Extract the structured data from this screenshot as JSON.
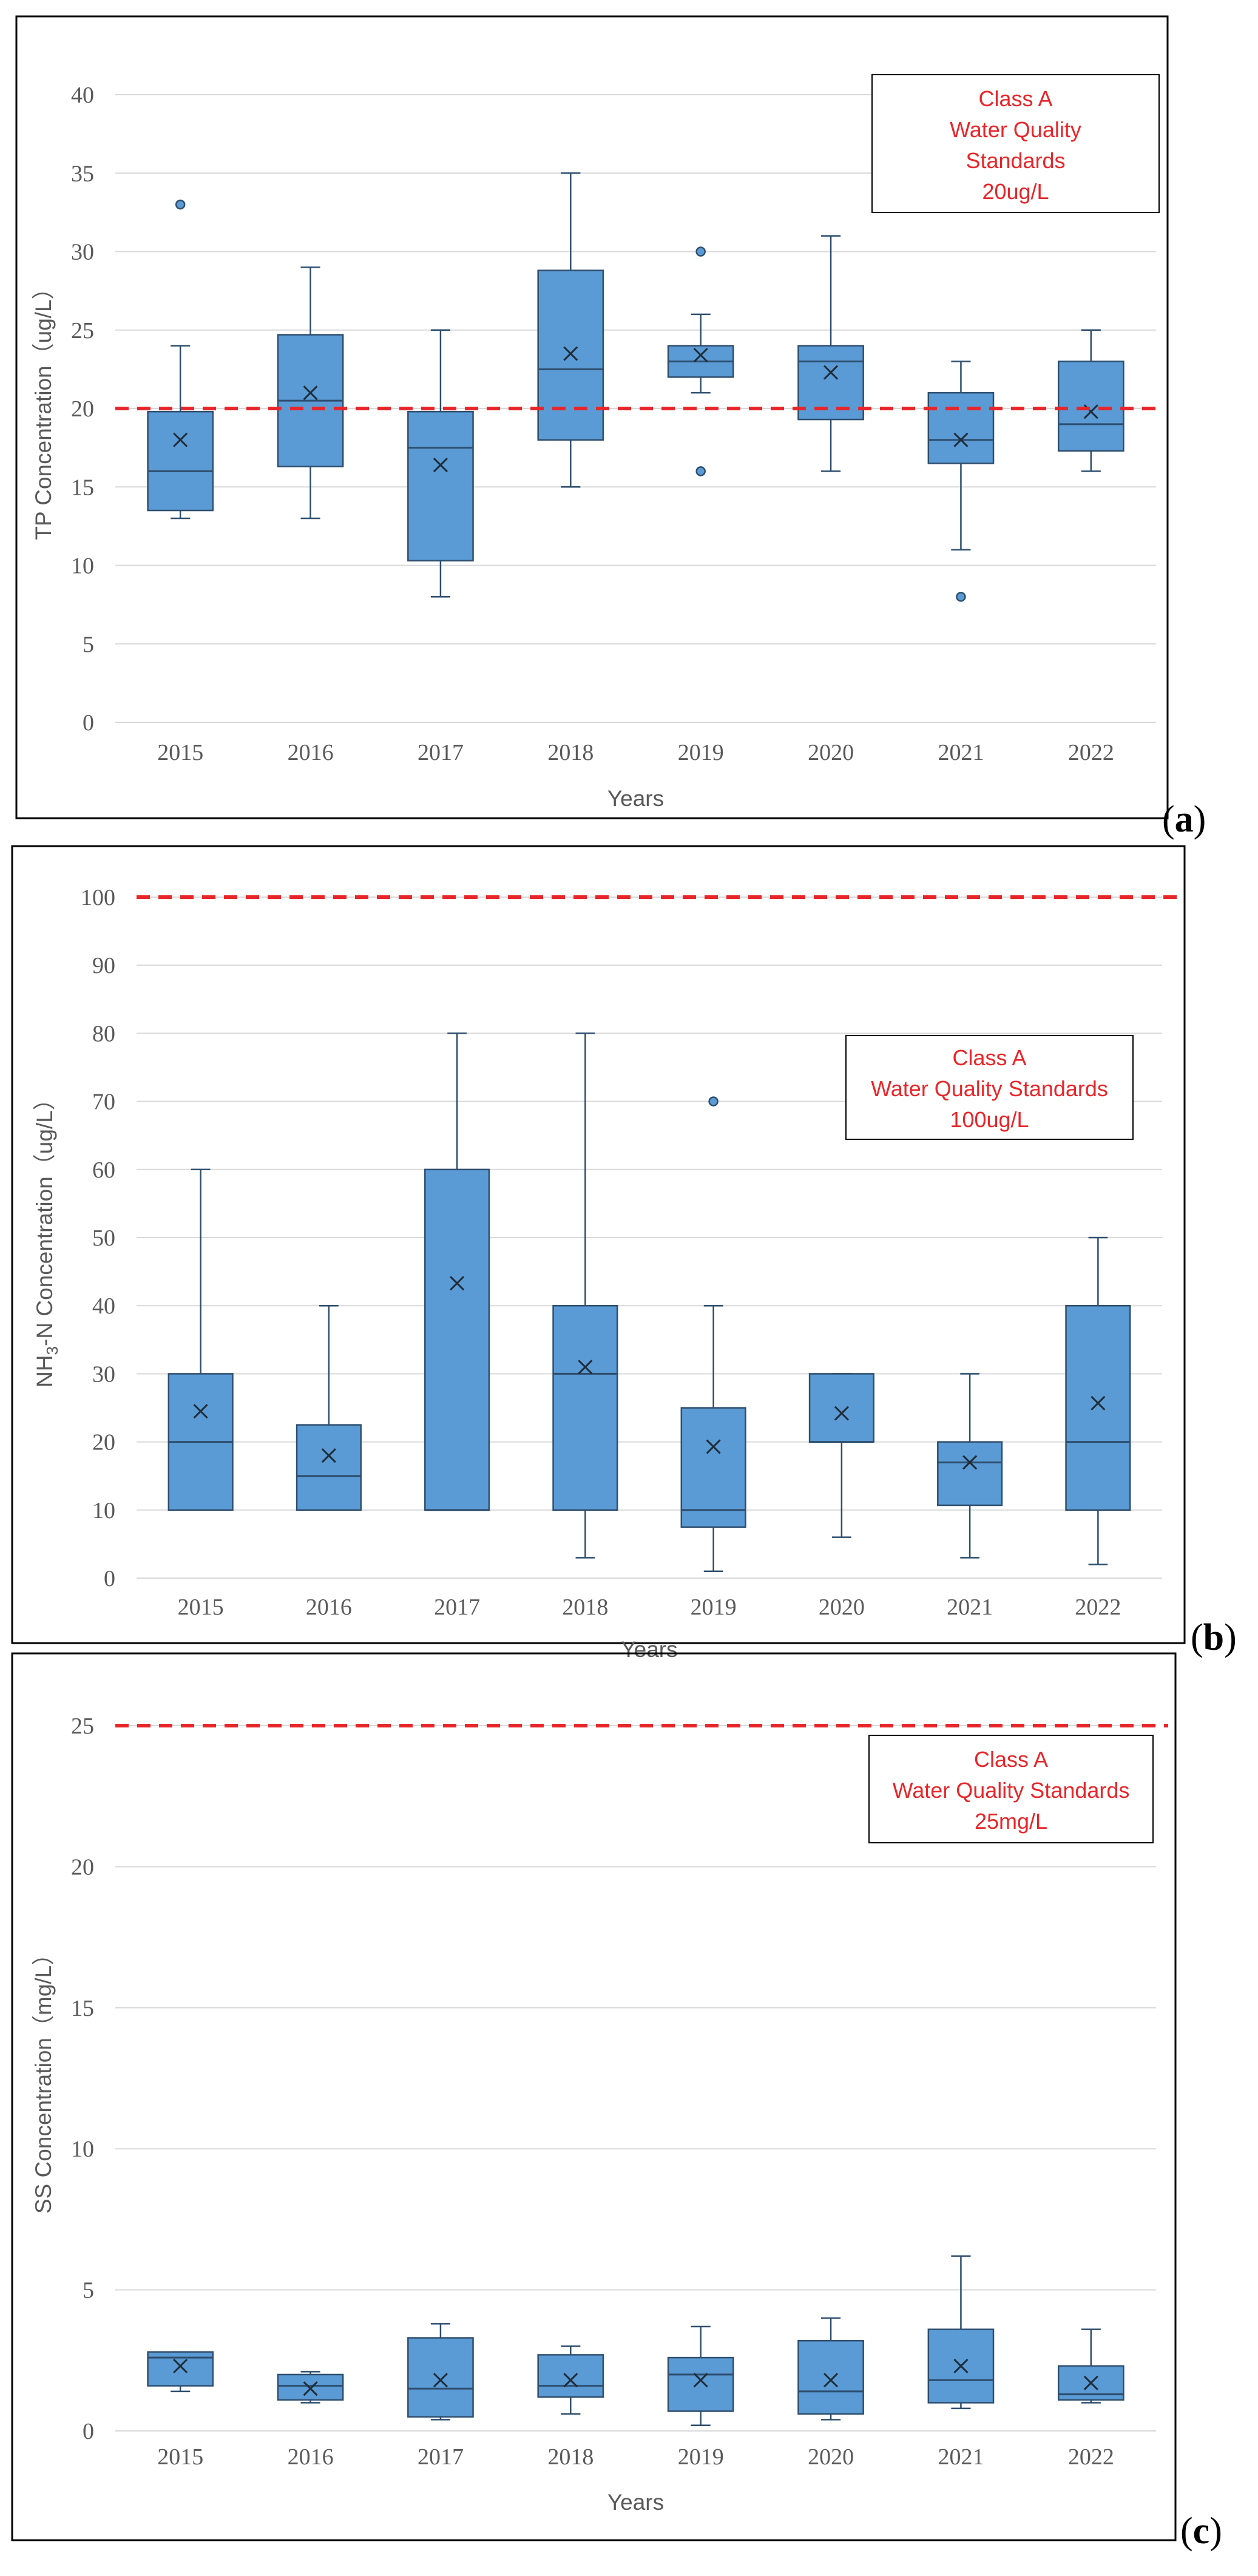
{
  "colors": {
    "box_fill": "#5b9bd5",
    "box_stroke": "#2e4e6e",
    "standard_line": "#e8262a",
    "grid": "#d9d9d9",
    "text": "#595959"
  },
  "chart_data": [
    {
      "type": "box",
      "panel_label": "a",
      "title": "",
      "xlabel": "Years",
      "ylabel": "TP Concentration（ug/L）",
      "ylim": [
        0,
        40
      ],
      "yticks": [
        "0",
        "5",
        "10",
        "15",
        "20",
        "25",
        "30",
        "35",
        "40"
      ],
      "categories": [
        "2015",
        "2016",
        "2017",
        "2018",
        "2019",
        "2020",
        "2021",
        "2022"
      ],
      "boxes": [
        {
          "min": 13,
          "q1": 13.5,
          "median": 16,
          "q3": 19.8,
          "max": 24,
          "mean": 18,
          "outliers": [
            33
          ]
        },
        {
          "min": 13,
          "q1": 16.3,
          "median": 20.5,
          "q3": 24.7,
          "max": 29,
          "mean": 21,
          "outliers": []
        },
        {
          "min": 8,
          "q1": 10.3,
          "median": 17.5,
          "q3": 19.8,
          "max": 25,
          "mean": 16.4,
          "outliers": []
        },
        {
          "min": 15,
          "q1": 18,
          "median": 22.5,
          "q3": 28.8,
          "max": 35,
          "mean": 23.5,
          "outliers": []
        },
        {
          "min": 21,
          "q1": 22,
          "median": 23,
          "q3": 24,
          "max": 26,
          "mean": 23.4,
          "outliers": [
            30,
            16
          ]
        },
        {
          "min": 16,
          "q1": 19.3,
          "median": 23,
          "q3": 24,
          "max": 31,
          "mean": 22.3,
          "outliers": []
        },
        {
          "min": 11,
          "q1": 16.5,
          "median": 18,
          "q3": 21,
          "max": 23,
          "mean": 18,
          "outliers": [
            8
          ]
        },
        {
          "min": 16,
          "q1": 17.3,
          "median": 19,
          "q3": 23,
          "max": 25,
          "mean": 19.8,
          "outliers": []
        }
      ],
      "standard_value": 20,
      "legend": [
        "Class A",
        "Water Quality",
        "Standards",
        "20ug/L"
      ]
    },
    {
      "type": "box",
      "panel_label": "b",
      "title": "",
      "xlabel": "Years",
      "ylabel_parts": [
        "NH",
        "3",
        "-N Concentration（ug/L）"
      ],
      "ylim": [
        0,
        100
      ],
      "yticks": [
        "0",
        "10",
        "20",
        "30",
        "40",
        "50",
        "60",
        "70",
        "80",
        "90",
        "100"
      ],
      "categories": [
        "2015",
        "2016",
        "2017",
        "2018",
        "2019",
        "2020",
        "2021",
        "2022"
      ],
      "boxes": [
        {
          "min": 10,
          "q1": 10,
          "median": 20,
          "q3": 30,
          "max": 60,
          "mean": 24.5,
          "outliers": []
        },
        {
          "min": 10,
          "q1": 10,
          "median": 15,
          "q3": 22.5,
          "max": 40,
          "mean": 18,
          "outliers": []
        },
        {
          "min": 10,
          "q1": 10,
          "median": 10,
          "q3": 60,
          "max": 80,
          "mean": 43.3,
          "outliers": []
        },
        {
          "min": 3,
          "q1": 10,
          "median": 30,
          "q3": 40,
          "max": 80,
          "mean": 31,
          "outliers": []
        },
        {
          "min": 1,
          "q1": 7.5,
          "median": 10,
          "q3": 25,
          "max": 40,
          "mean": 19.3,
          "outliers": [
            70
          ]
        },
        {
          "min": 6,
          "q1": 20,
          "median": 20,
          "q3": 30,
          "max": 30,
          "mean": 24.2,
          "outliers": []
        },
        {
          "min": 3,
          "q1": 10.7,
          "median": 17,
          "q3": 20,
          "max": 30,
          "mean": 17,
          "outliers": []
        },
        {
          "min": 2,
          "q1": 10,
          "median": 20,
          "q3": 40,
          "max": 50,
          "mean": 25.7,
          "outliers": []
        }
      ],
      "standard_value": 100,
      "legend": [
        "Class A",
        "Water Quality Standards",
        "100ug/L"
      ]
    },
    {
      "type": "box",
      "panel_label": "c",
      "title": "",
      "xlabel": "Years",
      "ylabel": "SS Concentration（mg/L）",
      "ylim": [
        0,
        25
      ],
      "yticks": [
        "0",
        "5",
        "10",
        "15",
        "20",
        "25"
      ],
      "categories": [
        "2015",
        "2016",
        "2017",
        "2018",
        "2019",
        "2020",
        "2021",
        "2022"
      ],
      "boxes": [
        {
          "min": 1.4,
          "q1": 1.6,
          "median": 2.6,
          "q3": 2.8,
          "max": 2.8,
          "mean": 2.3,
          "outliers": []
        },
        {
          "min": 1,
          "q1": 1.1,
          "median": 1.6,
          "q3": 2,
          "max": 2.1,
          "mean": 1.5,
          "outliers": []
        },
        {
          "min": 0.4,
          "q1": 0.5,
          "median": 1.5,
          "q3": 3.3,
          "max": 3.8,
          "mean": 1.8,
          "outliers": []
        },
        {
          "min": 0.6,
          "q1": 1.2,
          "median": 1.6,
          "q3": 2.7,
          "max": 3,
          "mean": 1.8,
          "outliers": []
        },
        {
          "min": 0.2,
          "q1": 0.7,
          "median": 2,
          "q3": 2.6,
          "max": 3.7,
          "mean": 1.8,
          "outliers": []
        },
        {
          "min": 0.4,
          "q1": 0.6,
          "median": 1.4,
          "q3": 3.2,
          "max": 4,
          "mean": 1.8,
          "outliers": []
        },
        {
          "min": 0.8,
          "q1": 1,
          "median": 1.8,
          "q3": 3.6,
          "max": 6.2,
          "mean": 2.3,
          "outliers": []
        },
        {
          "min": 1,
          "q1": 1.1,
          "median": 1.3,
          "q3": 2.3,
          "max": 3.6,
          "mean": 1.7,
          "outliers": []
        }
      ],
      "standard_value": 25,
      "legend": [
        "Class A",
        "Water Quality Standards",
        "25mg/L"
      ]
    }
  ]
}
